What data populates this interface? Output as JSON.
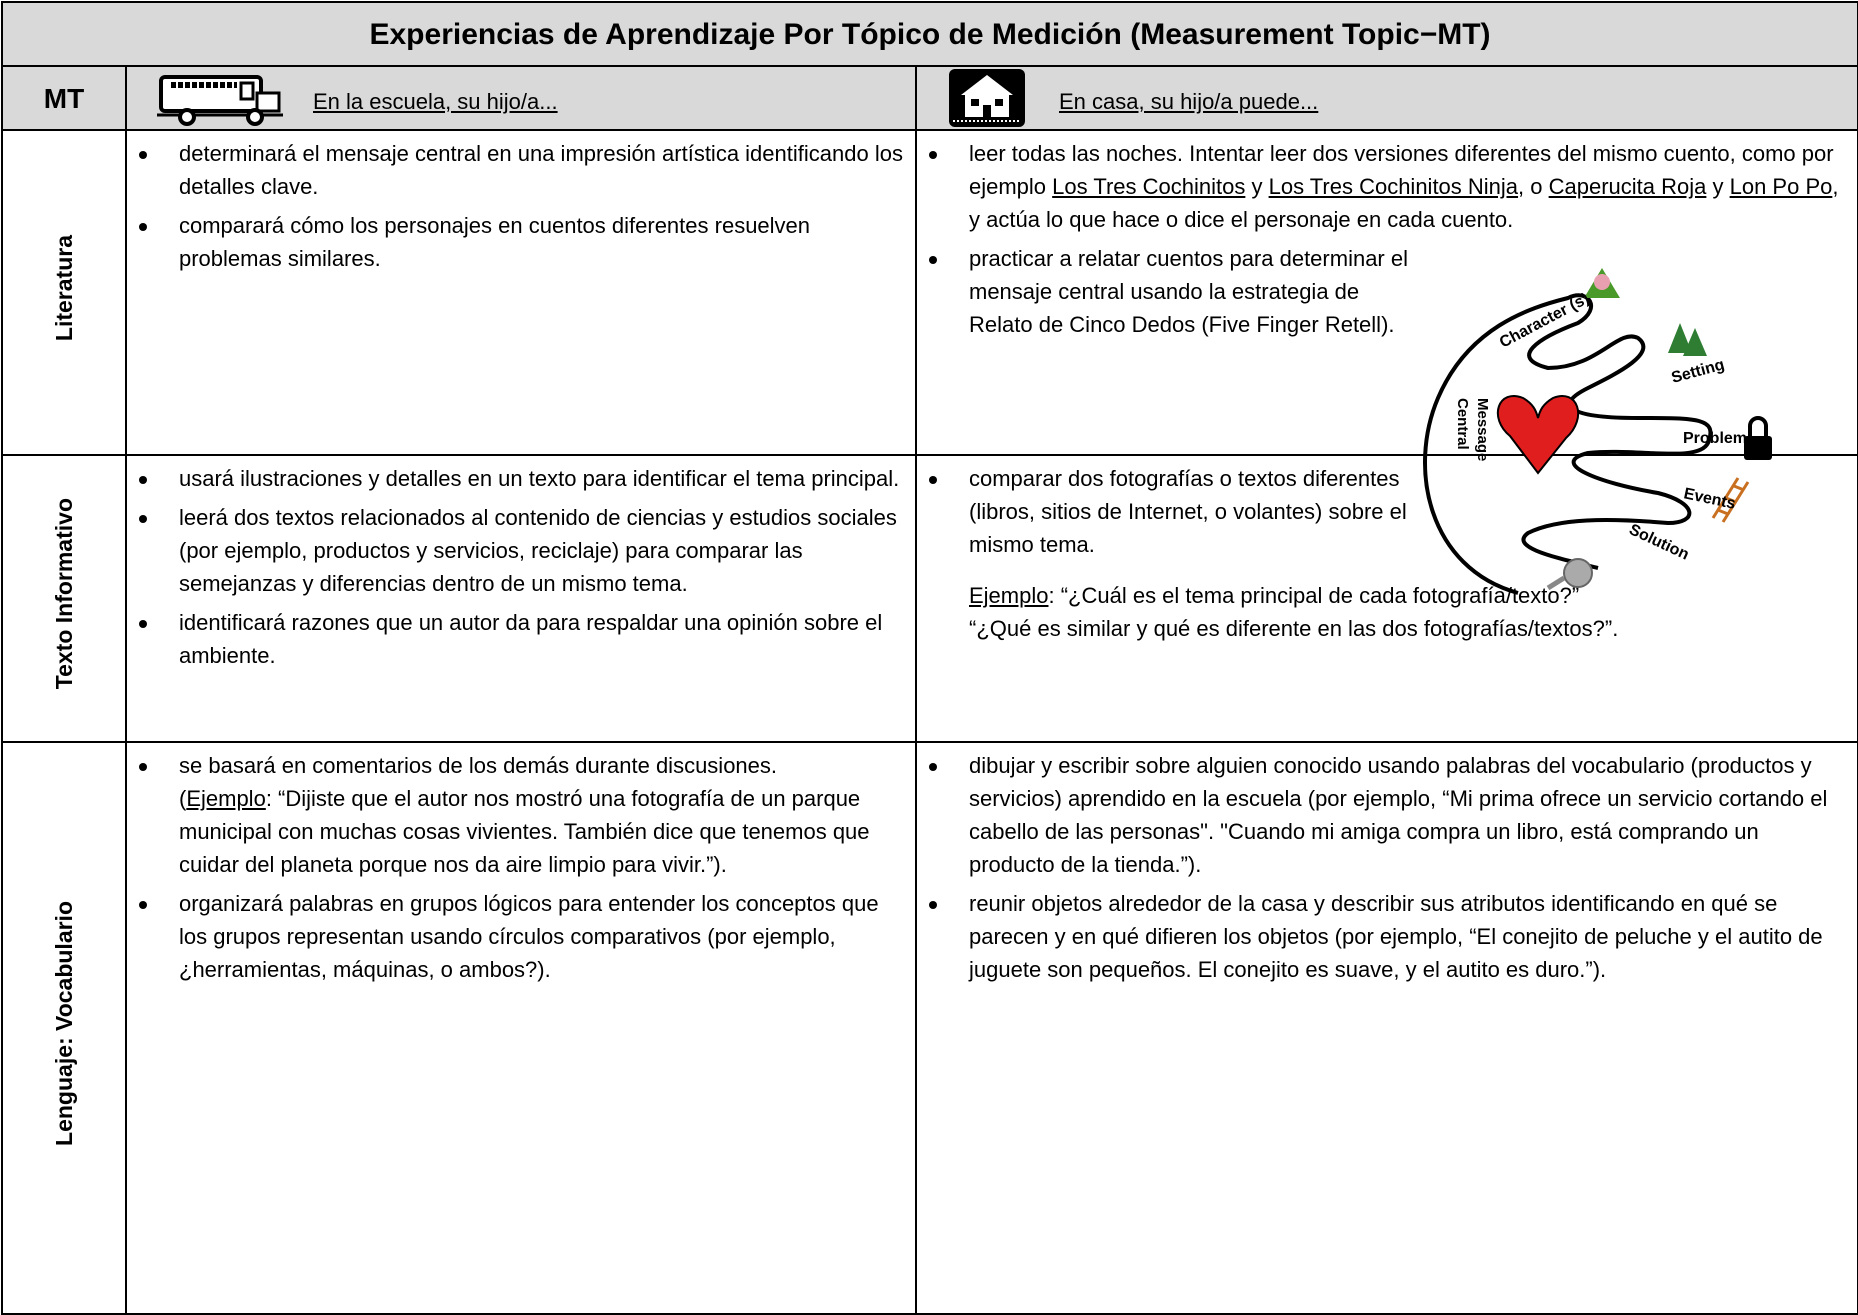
{
  "header": {
    "title": "Experiencias de Aprendizaje Por Tópico de Medición (Measurement Topic−MT)",
    "mt": "MT",
    "school": "En la escuela, su hijo/a...",
    "home": "En casa, su hijo/a puede..."
  },
  "rows": [
    {
      "topic": "Literatura",
      "school": [
        [
          [
            "determinará el mensaje central en una impresión artística identificando los detalles clave."
          ]
        ],
        [
          [
            "comparará cómo los personajes en cuentos diferentes resuelven problemas similares."
          ]
        ]
      ],
      "home": [
        [
          [
            "leer todas las noches.  Intentar leer dos versiones diferentes del mismo cuento, como por ejemplo ",
            {
              "u": "Los Tres Cochinitos"
            },
            " y ",
            {
              "u": "Los Tres Cochinitos Ninja"
            },
            ", o ",
            {
              "u": "Caperucita Roja"
            },
            " y ",
            {
              "u": "Lon Po Po"
            },
            ", y actúa lo que hace o dice el personaje en cada cuento."
          ]
        ],
        [
          [
            "practicar a relatar cuentos para determinar el mensaje central usando la estrategia de Relato de Cinco Dedos (Five Finger Retell)."
          ]
        ]
      ]
    },
    {
      "topic": "Texto Informativo",
      "school": [
        [
          [
            "usará ilustraciones y detalles en un texto para identificar el tema principal."
          ]
        ],
        [
          [
            "leerá dos textos relacionados al contenido de ciencias y estudios sociales (por ejemplo, productos y servicios, reciclaje) para comparar las semejanzas y diferencias dentro de un mismo tema."
          ]
        ],
        [
          [
            "identificará razones que un autor da para respaldar una opinión sobre el ambiente."
          ]
        ]
      ],
      "home": [
        [
          [
            "comparar dos fotografías o textos diferentes (libros, sitios de Internet, o volantes) sobre el mismo tema."
          ]
        ]
      ],
      "note": [
        [
          {
            "u": "Ejemplo"
          },
          ": “¿Cuál es el tema principal de cada fotografía/texto?”"
        ],
        [
          "“¿Qué es similar y qué es diferente en las dos fotografías/textos?”."
        ]
      ]
    },
    {
      "topic": "Lenguaje: Vocabulario",
      "school": [
        [
          [
            "se basará en comentarios de los demás durante discusiones."
          ],
          [
            "(",
            {
              "u": "Ejemplo"
            },
            ": “Dijiste que el autor nos mostró una fotografía de un parque municipal con muchas cosas vivientes.  También dice que tenemos que cuidar del planeta porque nos da aire limpio para vivir.”)."
          ]
        ],
        [
          [
            "organizará palabras en grupos lógicos para entender los conceptos que los grupos representan usando círculos comparativos (por ejemplo, ¿herramientas, máquinas, o ambos?)."
          ]
        ]
      ],
      "home": [
        [
          [
            "dibujar y escribir sobre alguien conocido usando palabras del vocabulario (productos y servicios) aprendido en la escuela (por ejemplo, “Mi prima ofrece un servicio cortando el cabello de las personas\". \"Cuando mi amiga compra un libro, está comprando un producto de la tienda.”)."
          ]
        ],
        [
          [
            "reunir objetos alrededor de la casa y describir sus atributos identificando en qué se parecen y en qué difieren los objetos (por ejemplo, “El conejito de peluche y el autito de juguete son pequeños. El conejito es suave, y el autito es duro.”)."
          ]
        ]
      ]
    }
  ],
  "diagram": {
    "labels": [
      "Character (s)",
      "Setting",
      "Problem",
      "Events",
      "Solution"
    ],
    "center": [
      "Central",
      "Message"
    ]
  }
}
